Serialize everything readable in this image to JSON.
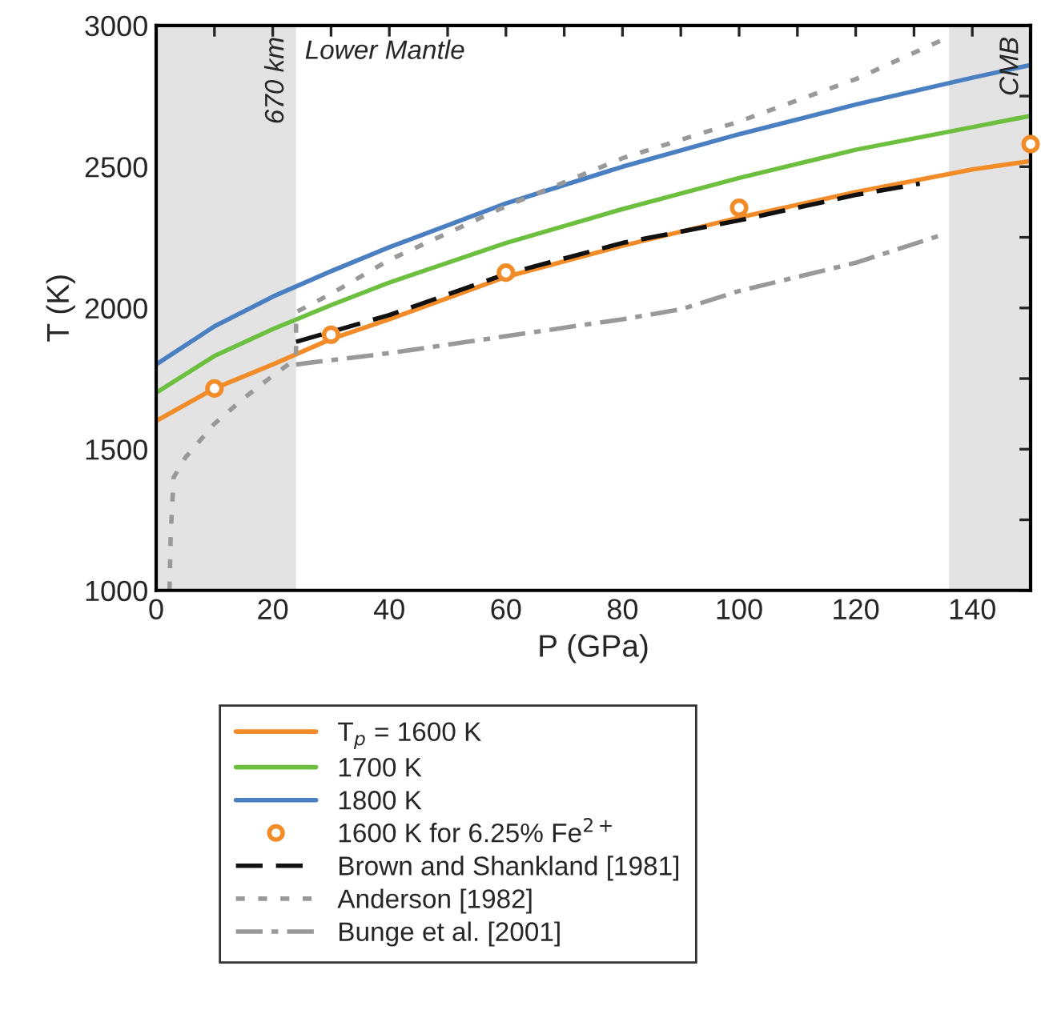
{
  "chart_data": {
    "type": "line",
    "xlabel": "P (GPa)",
    "ylabel": "T (K)",
    "xlim": [
      0,
      150
    ],
    "ylim": [
      1000,
      3000
    ],
    "xticks": [
      0,
      {
        "value": 10,
        "label": null
      },
      20,
      {
        "value": 30,
        "label": null
      },
      40,
      {
        "value": 50,
        "label": null
      },
      60,
      {
        "value": 70,
        "label": null
      },
      80,
      {
        "value": 90,
        "label": null
      },
      100,
      {
        "value": 110,
        "label": null
      },
      120,
      {
        "value": 130,
        "label": null
      },
      140
    ],
    "yticks": [
      1000,
      {
        "value": 1250,
        "label": null
      },
      1500,
      {
        "value": 1750,
        "label": null
      },
      2000,
      {
        "value": 2250,
        "label": null
      },
      2500,
      {
        "value": 2750,
        "label": null
      },
      3000
    ],
    "grid": false,
    "legend": "bottom",
    "bands": [
      {
        "axis": "x",
        "from": 0,
        "to": 24,
        "label": "670 km",
        "color": "#e3e3e3"
      },
      {
        "axis": "x",
        "from": 136,
        "to": 150,
        "label": "CMB",
        "color": "#e3e3e3"
      }
    ],
    "annotations": [
      "Lower Mantle"
    ],
    "series": [
      {
        "name": "T$_{p}$ = 1600 K",
        "color": "#f28c28",
        "line_style": "solid",
        "marker": "none",
        "x": [
          0,
          10,
          20,
          30,
          40,
          60,
          80,
          100,
          120,
          140,
          150
        ],
        "values": [
          1600,
          1715,
          1800,
          1890,
          1960,
          2110,
          2220,
          2320,
          2410,
          2490,
          2520
        ]
      },
      {
        "name": "1700 K",
        "color": "#6cbf3f",
        "line_style": "solid",
        "marker": "none",
        "x": [
          0,
          10,
          20,
          30,
          40,
          60,
          80,
          100,
          120,
          140,
          150
        ],
        "values": [
          1700,
          1830,
          1925,
          2010,
          2090,
          2230,
          2350,
          2460,
          2560,
          2640,
          2680
        ]
      },
      {
        "name": "1800 K",
        "color": "#4a7fc1",
        "line_style": "solid",
        "marker": "none",
        "x": [
          0,
          10,
          20,
          30,
          40,
          60,
          80,
          100,
          120,
          140,
          150
        ],
        "values": [
          1800,
          1935,
          2040,
          2130,
          2215,
          2370,
          2500,
          2615,
          2720,
          2815,
          2860
        ]
      },
      {
        "name": "1600 K for 6.25% Fe$^{2+}$",
        "type": "scatter",
        "color": "#f28c28",
        "marker": "circle",
        "x": [
          10,
          30,
          60,
          100,
          150
        ],
        "values": [
          1715,
          1905,
          2125,
          2355,
          2580
        ]
      },
      {
        "name": "Brown and Shankland [1981]",
        "color": "#111111",
        "line_style": "dashed",
        "marker": "none",
        "x": [
          24,
          40,
          60,
          80,
          100,
          120,
          131
        ],
        "values": [
          1880,
          1975,
          2120,
          2230,
          2310,
          2400,
          2440
        ]
      },
      {
        "name": "Anderson [1982]",
        "color": "#999999",
        "line_style": "dotted",
        "marker": "none",
        "x": [
          2.3,
          2.5,
          3,
          5,
          10,
          15,
          20,
          24,
          24,
          30,
          40,
          60,
          80,
          100,
          120,
          135
        ],
        "values": [
          1000,
          1200,
          1400,
          1470,
          1590,
          1680,
          1760,
          1820,
          1985,
          2050,
          2170,
          2360,
          2530,
          2660,
          2810,
          2950
        ]
      },
      {
        "name": "Bunge et al. [2001]",
        "color": "#999999",
        "line_style": "dashdot",
        "marker": "none",
        "x": [
          24,
          40,
          60,
          80,
          90,
          100,
          120,
          135
        ],
        "values": [
          1800,
          1840,
          1900,
          1960,
          1995,
          2060,
          2160,
          2260
        ]
      }
    ]
  }
}
